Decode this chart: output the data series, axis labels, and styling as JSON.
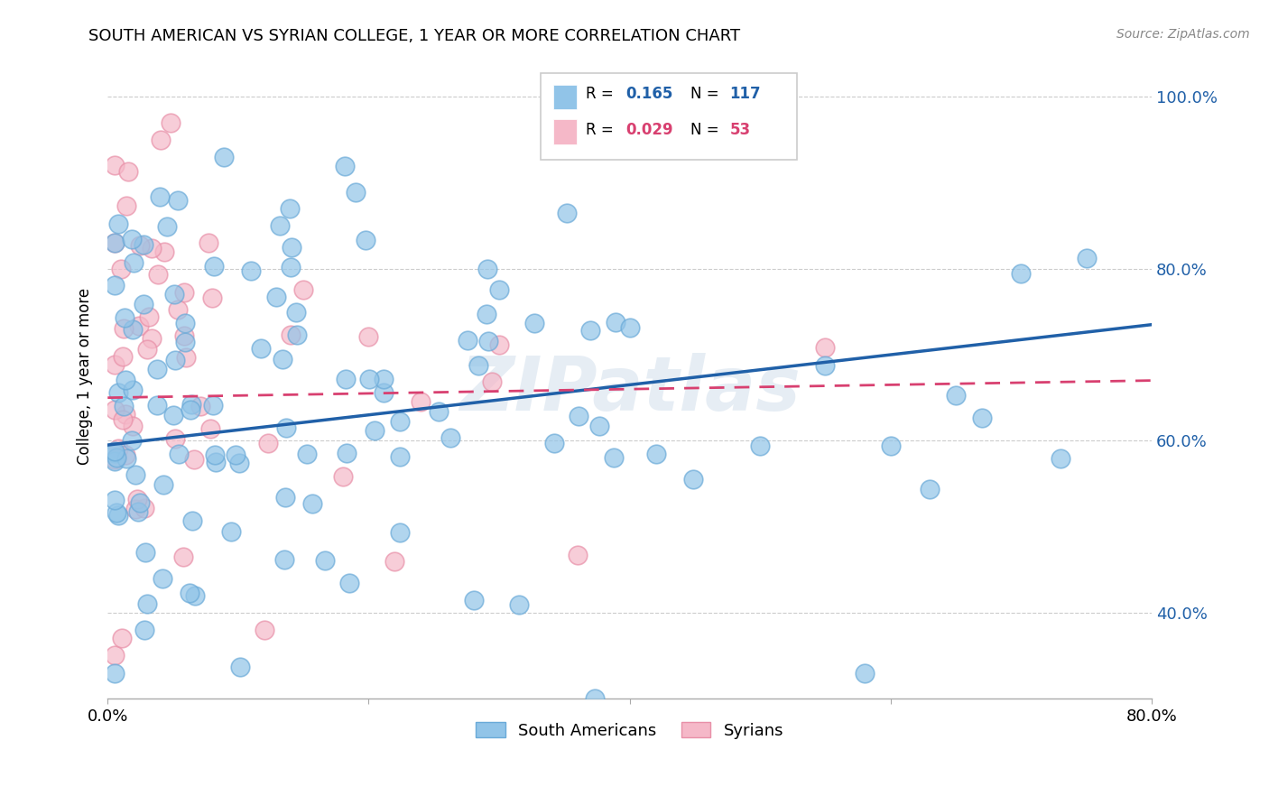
{
  "title": "SOUTH AMERICAN VS SYRIAN COLLEGE, 1 YEAR OR MORE CORRELATION CHART",
  "source": "Source: ZipAtlas.com",
  "ylabel_label": "College, 1 year or more",
  "xlim": [
    0.0,
    0.8
  ],
  "ylim": [
    0.3,
    1.05
  ],
  "ytick_vals": [
    0.4,
    0.6,
    0.8,
    1.0
  ],
  "ytick_labels": [
    "40.0%",
    "60.0%",
    "80.0%",
    "100.0%"
  ],
  "xtick_vals": [
    0.0,
    0.2,
    0.4,
    0.6,
    0.8
  ],
  "xtick_labels": [
    "0.0%",
    "",
    "",
    "",
    "80.0%"
  ],
  "legend_label1": "South Americans",
  "legend_label2": "Syrians",
  "R1": 0.165,
  "N1": 117,
  "R2": 0.029,
  "N2": 53,
  "color_blue": "#91c4e8",
  "color_pink": "#f5b8c8",
  "color_blue_edge": "#6aaad8",
  "color_pink_edge": "#e890a8",
  "color_blue_line": "#2060a8",
  "color_pink_line": "#d84070",
  "color_blue_text": "#2060a8",
  "color_pink_text": "#d84070",
  "watermark": "ZIPatlas",
  "grid_color": "#cccccc",
  "background_color": "#ffffff",
  "blue_trend_x0": 0.0,
  "blue_trend_y0": 0.595,
  "blue_trend_x1": 0.8,
  "blue_trend_y1": 0.735,
  "pink_trend_x0": 0.0,
  "pink_trend_y0": 0.65,
  "pink_trend_x1": 0.8,
  "pink_trend_y1": 0.67
}
